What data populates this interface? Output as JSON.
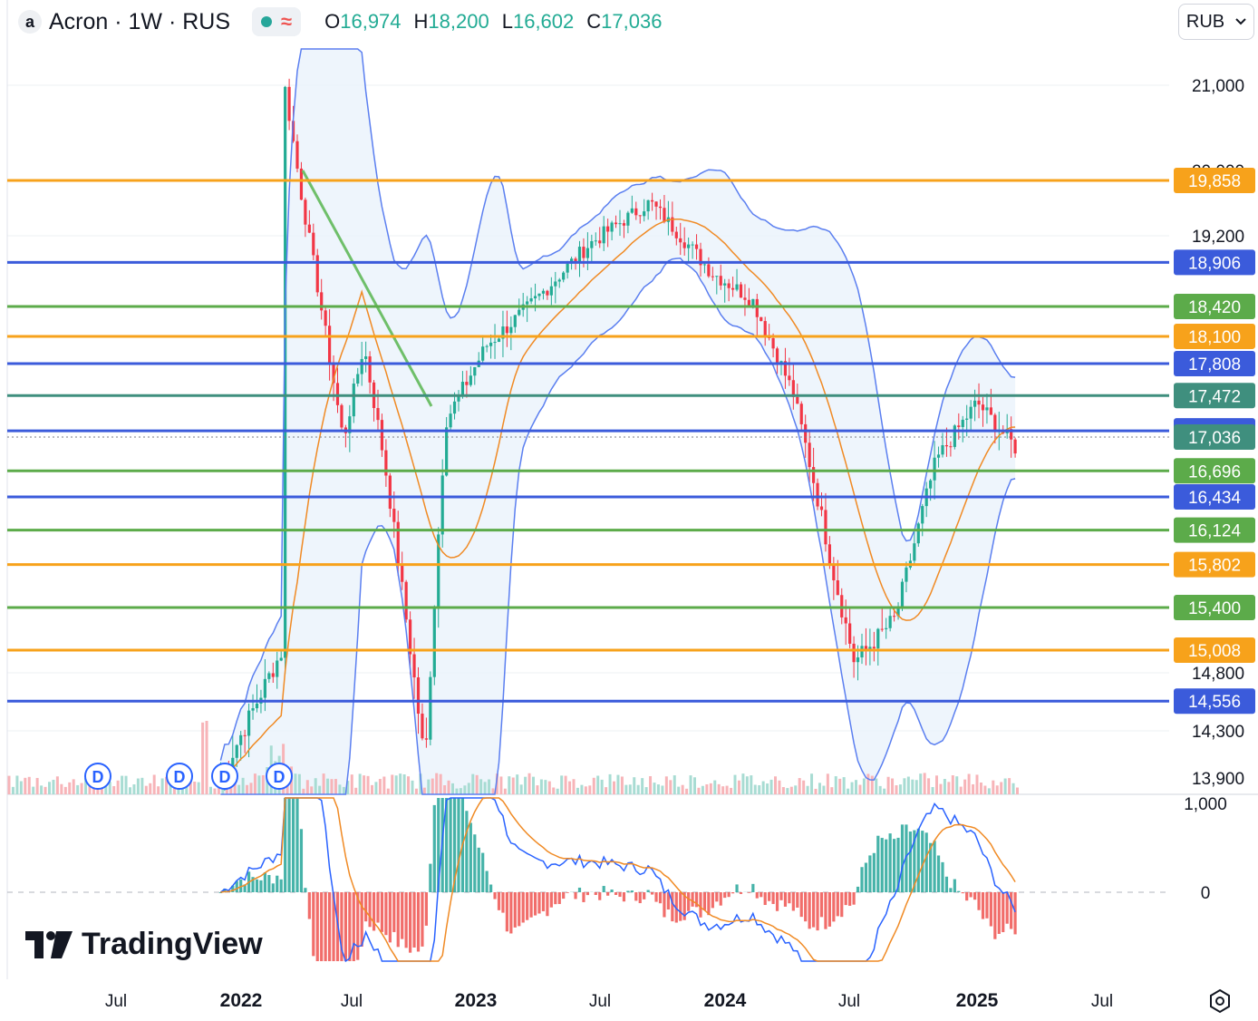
{
  "header": {
    "logo_letter": "a",
    "title": "Acron · 1W · RUS",
    "ohlc": [
      {
        "key": "O",
        "value": "16,974"
      },
      {
        "key": "H",
        "value": "18,200"
      },
      {
        "key": "L",
        "value": "16,602"
      },
      {
        "key": "C",
        "value": "17,036"
      }
    ]
  },
  "currency": {
    "label": "RUB",
    "icon": "chevron-down-icon"
  },
  "watermark": {
    "text": "TradingView"
  },
  "colors": {
    "up": "#22ab94",
    "down": "#f23645",
    "band": "#5b7ff0",
    "ma": "#f08a24",
    "orange": "#f7a21b",
    "blue": "#3b5bdb",
    "green": "#5cab4a"
  },
  "chart_data": {
    "type": "candlestick",
    "y_axis_ticks": [
      "21,000",
      "20,000",
      "19,200",
      "14,800",
      "14,300",
      "13,900"
    ],
    "macd_axis_ticks": [
      "1,000",
      "0"
    ],
    "x_axis_ticks": [
      "Jul",
      "2022",
      "Jul",
      "2023",
      "Jul",
      "2024",
      "Jul",
      "2025",
      "Jul"
    ],
    "current_price": "17,036",
    "levels": [
      {
        "value": 19858,
        "label": "19,858",
        "color": "orange"
      },
      {
        "value": 18906,
        "label": "18,906",
        "color": "blue"
      },
      {
        "value": 18420,
        "label": "18,420",
        "color": "green"
      },
      {
        "value": 18100,
        "label": "18,100",
        "color": "orange"
      },
      {
        "value": 17808,
        "label": "17,808",
        "color": "blue"
      },
      {
        "value": 17472,
        "label": "17,472",
        "color": "teal"
      },
      {
        "value": 17102,
        "label": "17,102",
        "color": "blue"
      },
      {
        "value": 17036,
        "label": "17,036",
        "color": "teal"
      },
      {
        "value": 16696,
        "label": "16,696",
        "color": "green"
      },
      {
        "value": 16434,
        "label": "16,434",
        "color": "blue"
      },
      {
        "value": 16124,
        "label": "16,124",
        "color": "green"
      },
      {
        "value": 15802,
        "label": "15,802",
        "color": "orange"
      },
      {
        "value": 15400,
        "label": "15,400",
        "color": "green"
      },
      {
        "value": 15008,
        "label": "15,008",
        "color": "orange"
      },
      {
        "value": 14556,
        "label": "14,556",
        "color": "blue"
      }
    ],
    "dividend_markers": [
      "D",
      "D",
      "D",
      "D"
    ],
    "price_path": [
      [
        "2021-12",
        13900
      ],
      [
        "2022-03",
        15000
      ],
      [
        "2022-03",
        21200
      ],
      [
        "2022-04",
        19600
      ],
      [
        "2022-06",
        17000
      ],
      [
        "2022-07",
        18000
      ],
      [
        "2022-08",
        16800
      ],
      [
        "2022-10",
        14000
      ],
      [
        "2022-11",
        17200
      ],
      [
        "2023-01",
        18000
      ],
      [
        "2023-03",
        18400
      ],
      [
        "2023-06",
        19100
      ],
      [
        "2023-09",
        19600
      ],
      [
        "2023-12",
        18800
      ],
      [
        "2024-02",
        18500
      ],
      [
        "2024-04",
        17500
      ],
      [
        "2024-06",
        15700
      ],
      [
        "2024-07",
        14900
      ],
      [
        "2024-09",
        15300
      ],
      [
        "2024-11",
        16800
      ],
      [
        "2025-01",
        17400
      ],
      [
        "2025-03",
        16900
      ],
      [
        "2025-03",
        17036
      ]
    ]
  }
}
